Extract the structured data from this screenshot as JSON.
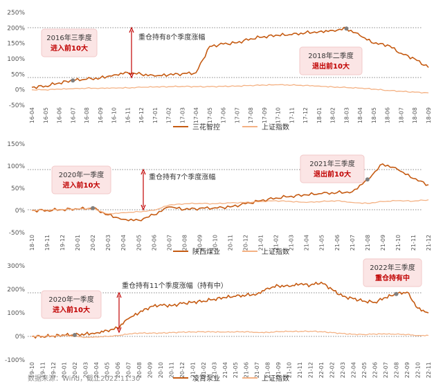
{
  "source": "数据来源：Wind，截止2022.11.30",
  "colors": {
    "main": "#c55a11",
    "index": "#f4b183",
    "box_fill": "#fbe5e5",
    "box_text_hi": "#c00000",
    "arrow": "#c00000"
  },
  "chart_data": [
    {
      "type": "line",
      "yticks": [
        "250%",
        "200%",
        "150%",
        "100%",
        "50%",
        "0%",
        "-50%"
      ],
      "ylim": [
        -50,
        250
      ],
      "x": [
        "16-04",
        "16-05",
        "16-06",
        "16-07",
        "16-08",
        "16-09",
        "16-10",
        "16-11",
        "16-12",
        "17-01",
        "17-02",
        "17-03",
        "17-04",
        "17-05",
        "17-06",
        "17-07",
        "17-08",
        "17-09",
        "17-10",
        "17-11",
        "17-12",
        "18-01",
        "18-02",
        "18-03",
        "18-04",
        "18-05",
        "18-06",
        "18-07",
        "18-08",
        "18-09"
      ],
      "series": [
        {
          "name": "三花智控",
          "values": [
            8,
            12,
            22,
            30,
            34,
            38,
            48,
            56,
            50,
            44,
            48,
            52,
            55,
            140,
            148,
            152,
            165,
            172,
            176,
            178,
            184,
            188,
            192,
            198,
            175,
            150,
            145,
            118,
            100,
            72
          ]
        },
        {
          "name": "上证指数",
          "values": [
            0,
            0,
            2,
            3,
            5,
            5,
            6,
            6,
            8,
            9,
            10,
            11,
            10,
            10,
            11,
            12,
            14,
            15,
            16,
            15,
            14,
            12,
            9,
            7,
            5,
            2,
            -2,
            -5,
            -8,
            -10
          ]
        }
      ],
      "annotations": {
        "entry": {
          "line1": "2016年三季度",
          "line2": "进入前10大",
          "x": "16-07"
        },
        "exit": {
          "line1": "2018年二季度",
          "line2": "退出前10大",
          "x": "18-03"
        },
        "span_label": "重仓持有8个季度涨幅"
      }
    },
    {
      "type": "line",
      "yticks": [
        "150%",
        "100%",
        "50%",
        "0%",
        "-50%"
      ],
      "ylim": [
        -50,
        150
      ],
      "x": [
        "18-10",
        "19-11",
        "19-12",
        "20-01",
        "20-02",
        "20-03",
        "20-04",
        "20-05",
        "20-06",
        "20-07",
        "20-08",
        "20-09",
        "20-10",
        "20-11",
        "20-12",
        "21-01",
        "21-02",
        "21-03",
        "21-04",
        "21-05",
        "21-06",
        "21-07",
        "21-08",
        "21-09",
        "21-10",
        "21-11",
        "21-12"
      ],
      "series": [
        {
          "name": "陕西煤业",
          "values": [
            0,
            0,
            2,
            3,
            5,
            -10,
            -20,
            -22,
            -10,
            8,
            2,
            5,
            6,
            8,
            15,
            22,
            28,
            32,
            35,
            38,
            40,
            42,
            70,
            105,
            92,
            72,
            58
          ]
        },
        {
          "name": "上证指数",
          "values": [
            0,
            1,
            2,
            3,
            4,
            -8,
            -5,
            -3,
            0,
            12,
            15,
            16,
            15,
            17,
            18,
            20,
            22,
            20,
            18,
            20,
            22,
            18,
            16,
            20,
            22,
            21,
            24
          ]
        }
      ],
      "annotations": {
        "entry": {
          "line1": "2020年一季度",
          "line2": "进入前10大",
          "x": "20-02"
        },
        "exit": {
          "line1": "2021年三季度",
          "line2": "退出前10大",
          "x": "21-08"
        },
        "span_label": "重仓持有7个季度涨幅"
      }
    },
    {
      "type": "line",
      "yticks": [
        "300%",
        "200%",
        "100%",
        "0%",
        "-100%"
      ],
      "ylim": [
        -100,
        300
      ],
      "x": [
        "19-10",
        "19-11",
        "19-12",
        "20-01",
        "20-02",
        "20-03",
        "20-04",
        "20-05",
        "20-06",
        "20-07",
        "20-08",
        "20-09",
        "20-10",
        "20-11",
        "20-12",
        "21-01",
        "21-02",
        "21-03",
        "21-04",
        "21-05",
        "21-06",
        "21-07",
        "21-08",
        "21-09",
        "21-10",
        "21-11",
        "21-12",
        "22-01",
        "22-02",
        "22-03",
        "22-04",
        "22-05",
        "22-06",
        "22-07",
        "22-08",
        "22-09",
        "22-10",
        "22-11"
      ],
      "series": [
        {
          "name": "凌霄泵业",
          "values": [
            0,
            0,
            2,
            5,
            6,
            10,
            15,
            25,
            35,
            75,
            100,
            125,
            135,
            130,
            140,
            145,
            150,
            158,
            165,
            170,
            175,
            180,
            205,
            215,
            212,
            222,
            218,
            230,
            200,
            170,
            160,
            150,
            145,
            165,
            180,
            188,
            120,
            100
          ]
        },
        {
          "name": "上证指数",
          "values": [
            0,
            1,
            2,
            3,
            1,
            -4,
            -2,
            0,
            3,
            10,
            14,
            14,
            14,
            16,
            18,
            19,
            20,
            19,
            18,
            19,
            20,
            17,
            17,
            20,
            21,
            21,
            22,
            20,
            16,
            12,
            9,
            8,
            10,
            10,
            9,
            8,
            4,
            4
          ]
        }
      ],
      "annotations": {
        "entry": {
          "line1": "2020年一季度",
          "line2": "进入前10大",
          "x": "20-02"
        },
        "exit": {
          "line1": "2022年三季度",
          "line2": "重仓持有中",
          "x": "22-08"
        },
        "span_label": "重仓持有11个季度涨幅（持有中）"
      }
    }
  ]
}
